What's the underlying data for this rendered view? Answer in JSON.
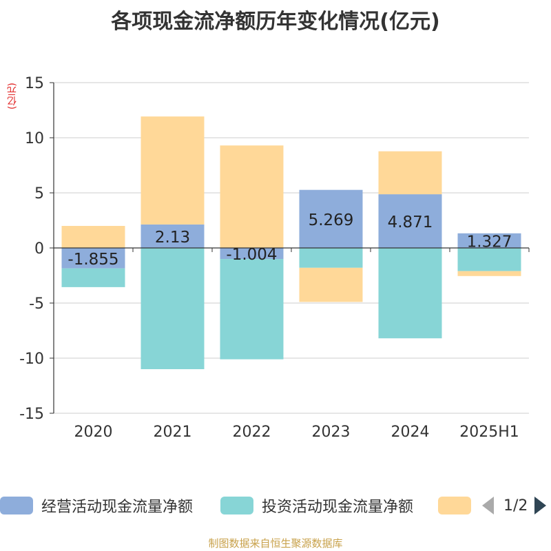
{
  "title": "各项现金流净额历年变化情况(亿元)",
  "unit_label": "(亿元)",
  "colors": {
    "operating": "#8EADDB",
    "investing": "#87D5D6",
    "financing": "#FFD898",
    "grid": "#cccccc",
    "axis": "#333333"
  },
  "chart_data": {
    "type": "bar",
    "stacked": true,
    "title": "各项现金流净额历年变化情况(亿元)",
    "ylabel": "(亿元)",
    "categories": [
      "2020",
      "2021",
      "2022",
      "2023",
      "2024",
      "2025H1"
    ],
    "ylim": [
      -15,
      15
    ],
    "yticks": [
      15,
      10,
      5,
      0,
      -5,
      -10,
      -15
    ],
    "grid": true,
    "legend_position": "bottom",
    "series": [
      {
        "name": "经营活动现金流量净额",
        "values": [
          -1.855,
          2.13,
          -1.004,
          5.269,
          4.871,
          1.327
        ],
        "labels": [
          "-1.855",
          "2.13",
          "-1.004",
          "5.269",
          "4.871",
          "1.327"
        ],
        "color": "#8EADDB"
      },
      {
        "name": "投资活动现金流量净额",
        "values": [
          -1.7,
          -11.0,
          -9.1,
          -1.8,
          -8.2,
          -2.1
        ],
        "color": "#87D5D6"
      },
      {
        "values": [
          2.0,
          9.8,
          9.3,
          -3.1,
          3.9,
          -0.45
        ],
        "color": "#FFD898"
      }
    ]
  },
  "legend": {
    "items": [
      {
        "label": "经营活动现金流量净额",
        "color": "#8EADDB"
      },
      {
        "label": "投资活动现金流量净额",
        "color": "#87D5D6"
      },
      {
        "label": "",
        "color": "#FFD898"
      }
    ],
    "page": "1/2"
  },
  "source": "制图数据来自恒生聚源数据库"
}
